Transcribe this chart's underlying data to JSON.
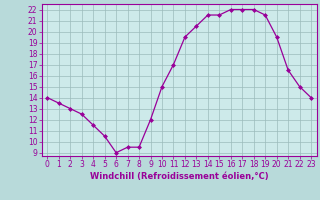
{
  "x": [
    0,
    1,
    2,
    3,
    4,
    5,
    6,
    7,
    8,
    9,
    10,
    11,
    12,
    13,
    14,
    15,
    16,
    17,
    18,
    19,
    20,
    21,
    22,
    23
  ],
  "y": [
    14,
    13.5,
    13,
    12.5,
    11.5,
    10.5,
    9,
    9.5,
    9.5,
    12,
    15,
    17,
    19.5,
    20.5,
    21.5,
    21.5,
    22,
    22,
    22,
    21.5,
    19.5,
    16.5,
    15,
    14
  ],
  "line_color": "#990099",
  "marker": "D",
  "marker_size": 2.0,
  "line_width": 0.9,
  "bg_color": "#b8dada",
  "plot_area_color": "#cdeaea",
  "grid_color": "#9bbcbc",
  "xlabel": "Windchill (Refroidissement éolien,°C)",
  "xlabel_color": "#990099",
  "xlabel_fontsize": 6.0,
  "tick_fontsize": 5.5,
  "ytick_min": 9,
  "ytick_max": 22,
  "xtick_min": 0,
  "xtick_max": 23
}
